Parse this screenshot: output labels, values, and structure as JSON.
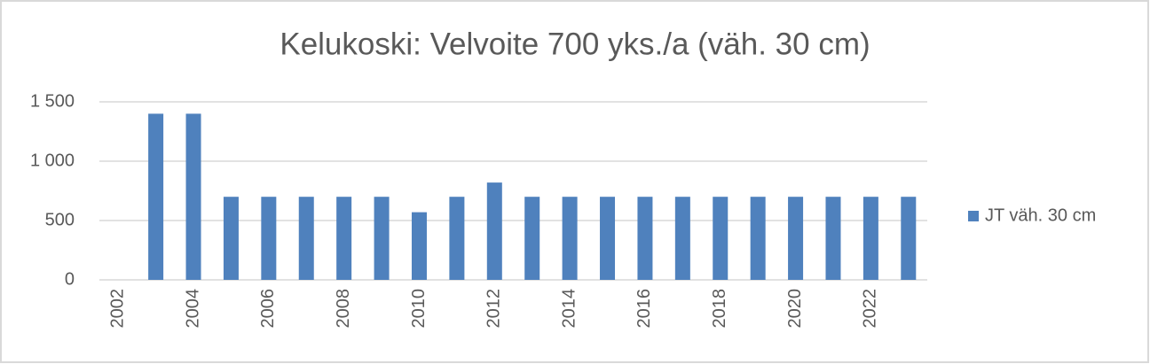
{
  "chart_data": {
    "type": "bar",
    "title": "Kelukoski: Velvoite 700 yks./a  (väh. 30 cm)",
    "categories": [
      "2002",
      null,
      "2004",
      null,
      "2006",
      null,
      "2008",
      null,
      "2010",
      null,
      "2012",
      null,
      "2014",
      null,
      "2016",
      null,
      "2018",
      null,
      "2020",
      null,
      "2022",
      null
    ],
    "series": [
      {
        "name": "JT väh. 30 cm",
        "color": "#4f81bd",
        "values": [
          null,
          1400,
          1400,
          700,
          700,
          700,
          700,
          700,
          570,
          700,
          820,
          700,
          700,
          700,
          700,
          700,
          700,
          700,
          700,
          700,
          700,
          700
        ]
      }
    ],
    "ylim": [
      0,
      1500
    ],
    "yticks": [
      0,
      500,
      {
        "value": 1000,
        "label": "1 000"
      },
      {
        "value": 1500,
        "label": "1 500"
      }
    ],
    "grid": true,
    "legend": "right"
  }
}
